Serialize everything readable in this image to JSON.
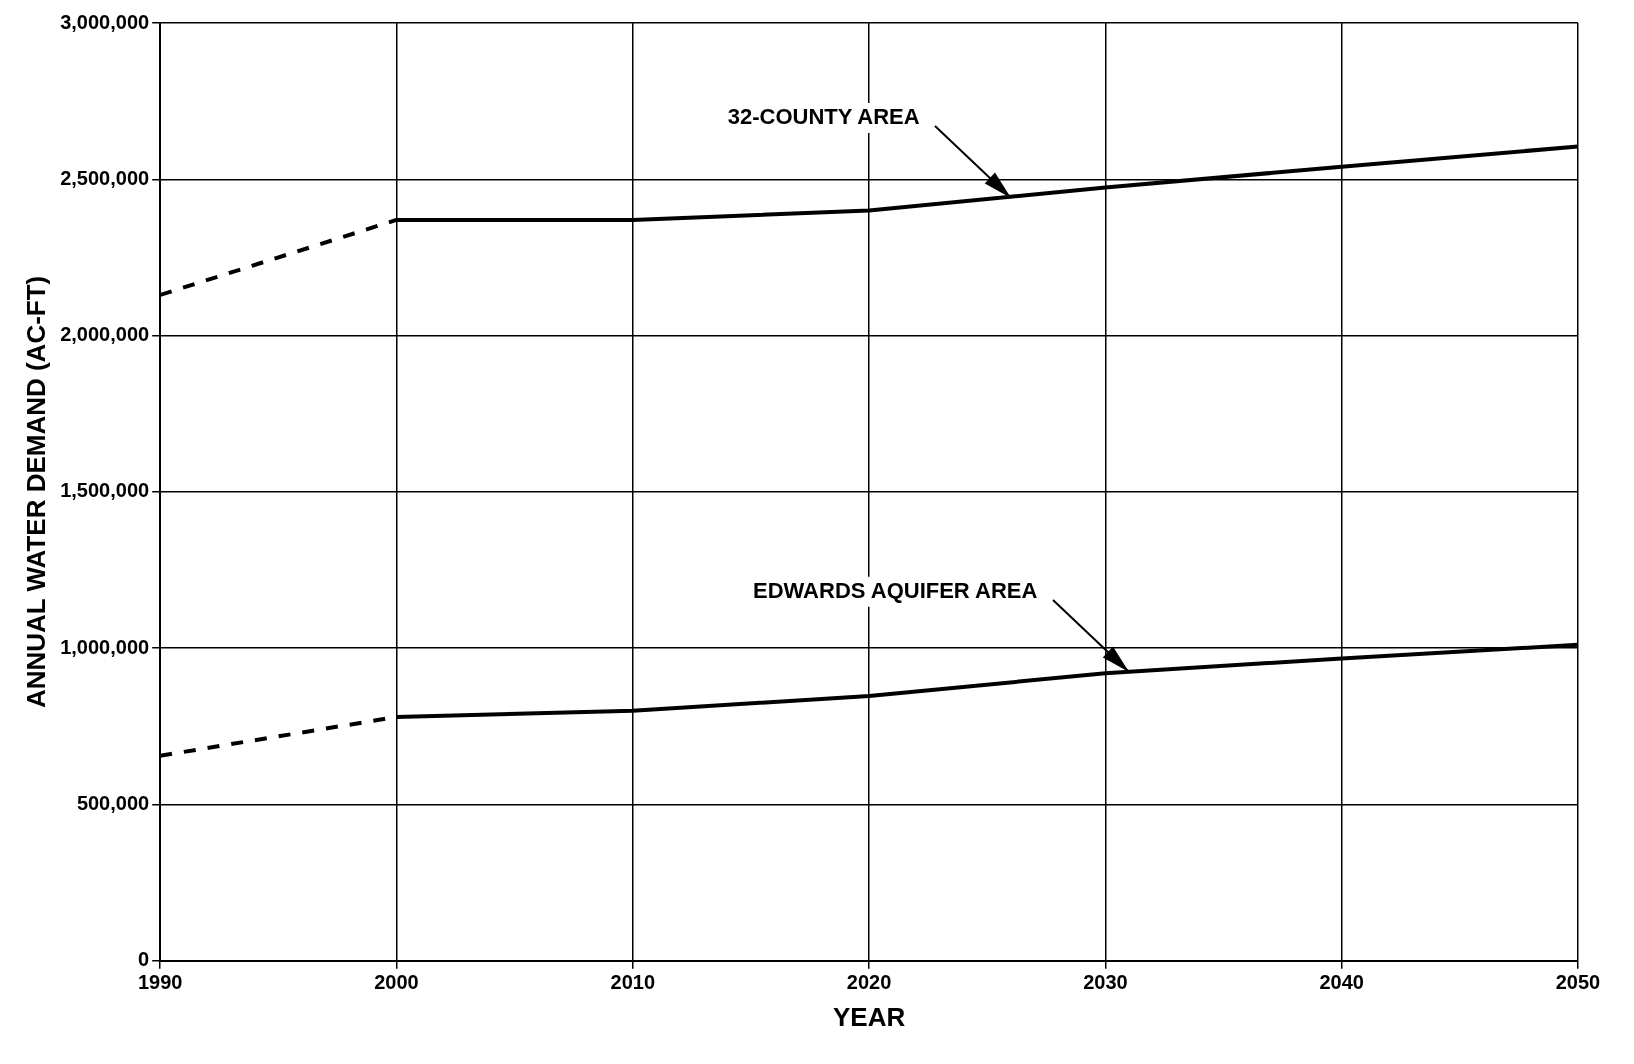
{
  "chart_data": {
    "type": "line",
    "xlabel": "YEAR",
    "ylabel": "ANNUAL WATER DEMAND (AC-FT)",
    "xlim": [
      1990,
      2050
    ],
    "xticks": [
      1990,
      2000,
      2010,
      2020,
      2030,
      2040,
      2050
    ],
    "ylim": [
      0,
      3000000
    ],
    "yticks": [
      {
        "value": 0,
        "label": "0"
      },
      {
        "value": 500000,
        "label": "500,000"
      },
      {
        "value": 1000000,
        "label": "1,000,000"
      },
      {
        "value": 1500000,
        "label": "1,500,000"
      },
      {
        "value": 2000000,
        "label": "2,000,000"
      },
      {
        "value": 2500000,
        "label": "2,500,000"
      },
      {
        "value": 3000000,
        "label": "3,000,000"
      }
    ],
    "grid": true,
    "legend": false,
    "marker": "none",
    "line_style": "solid",
    "series": [
      {
        "color": "#000000",
        "line_style": "dashed",
        "x": [
          1990,
          2000
        ],
        "values": [
          2130000,
          2370000
        ]
      },
      {
        "color": "#000000",
        "x": [
          2000,
          2010,
          2020,
          2030,
          2040,
          2050
        ],
        "values": [
          2370000,
          2370000,
          2400000,
          2474000,
          2540000,
          2605000
        ]
      },
      {
        "color": "#000000",
        "line_style": "dashed",
        "x": [
          1990,
          2000
        ],
        "values": [
          656000,
          780000
        ]
      },
      {
        "color": "#000000",
        "x": [
          2000,
          2010,
          2020,
          2030,
          2040,
          2050
        ],
        "values": [
          780000,
          800000,
          847000,
          920000,
          967000,
          1011000
        ]
      }
    ],
    "annotations": [
      {
        "text": "32-COUNTY AREA",
        "x": 2026,
        "y": 2440000
      },
      {
        "text": "EDWARDS AQUIFER AREA",
        "x": 2031,
        "y": 925000
      }
    ]
  }
}
